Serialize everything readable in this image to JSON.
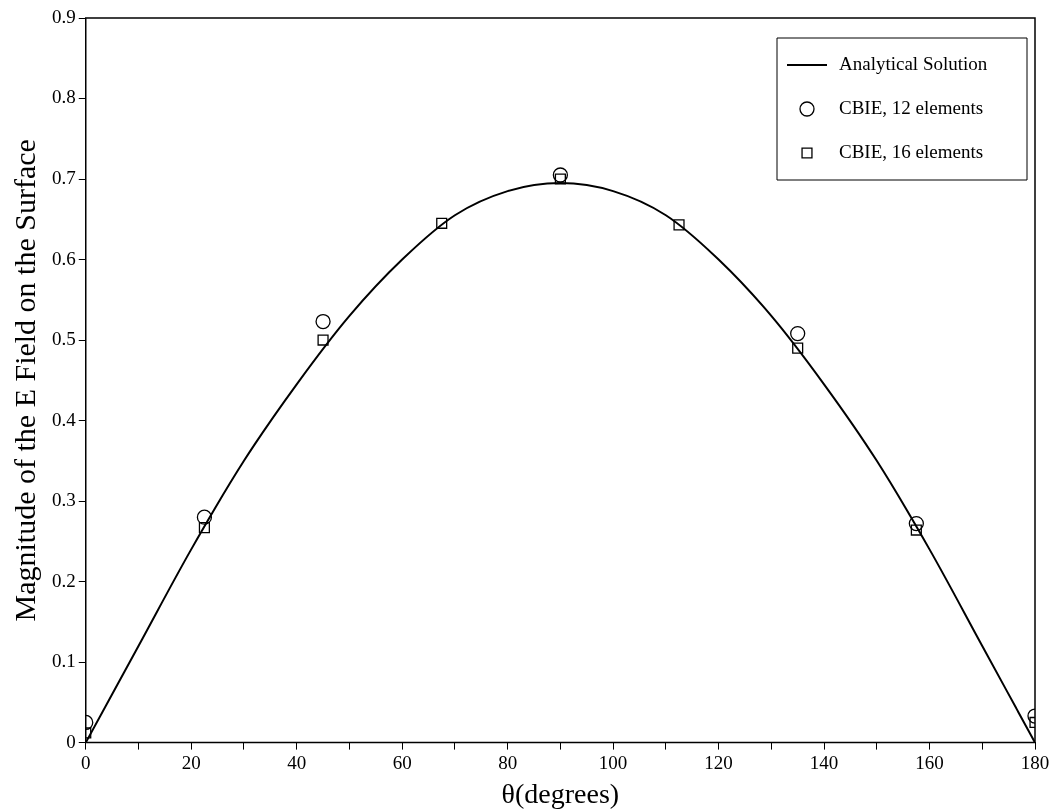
{
  "chart_data": {
    "type": "line",
    "xlabel": "θ(degrees)",
    "ylabel": "Magnitude of the E Field on the Surface",
    "xlim": [
      0,
      180
    ],
    "xticks": [
      0,
      {
        "value": 10,
        "label": null
      },
      20,
      {
        "value": 30,
        "label": null
      },
      40,
      {
        "value": 50,
        "label": null
      },
      60,
      {
        "value": 70,
        "label": null
      },
      80,
      {
        "value": 90,
        "label": null
      },
      100,
      {
        "value": 110,
        "label": null
      },
      120,
      {
        "value": 130,
        "label": null
      },
      140,
      {
        "value": 150,
        "label": null
      },
      160,
      {
        "value": 170,
        "label": null
      },
      180
    ],
    "ylim": [
      0,
      0.9
    ],
    "yticks": [
      0,
      0.1,
      0.2,
      0.3,
      0.4,
      0.5,
      0.6,
      0.7,
      0.8,
      0.9
    ],
    "grid": false,
    "legend": "top right",
    "series": [
      {
        "name": "Analytical Solution",
        "color": "#000000",
        "marker": "none",
        "line_style": "solid",
        "x": [
          0,
          10,
          20,
          30,
          40,
          50,
          60,
          70,
          80,
          90,
          100,
          110,
          120,
          130,
          140,
          150,
          160,
          170,
          180
        ],
        "values": [
          0,
          0.12,
          0.24,
          0.35,
          0.445,
          0.53,
          0.6,
          0.655,
          0.685,
          0.695,
          0.685,
          0.655,
          0.6,
          0.53,
          0.445,
          0.35,
          0.24,
          0.12,
          0
        ]
      },
      {
        "name": "CBIE, 12 elements",
        "type": "scatter",
        "color": "#000000",
        "marker": "circle",
        "x": [
          0,
          22.5,
          45,
          90,
          135,
          157.5,
          180
        ],
        "values": [
          0.025,
          0.28,
          0.523,
          0.705,
          0.508,
          0.272,
          0.033
        ]
      },
      {
        "name": "CBIE, 16 elements",
        "type": "scatter",
        "color": "#000000",
        "marker": "square",
        "x": [
          0,
          22.5,
          45,
          67.5,
          90,
          112.5,
          135,
          157.5,
          180
        ],
        "values": [
          0.012,
          0.267,
          0.5,
          0.645,
          0.7,
          0.643,
          0.49,
          0.264,
          0.025
        ]
      }
    ]
  }
}
